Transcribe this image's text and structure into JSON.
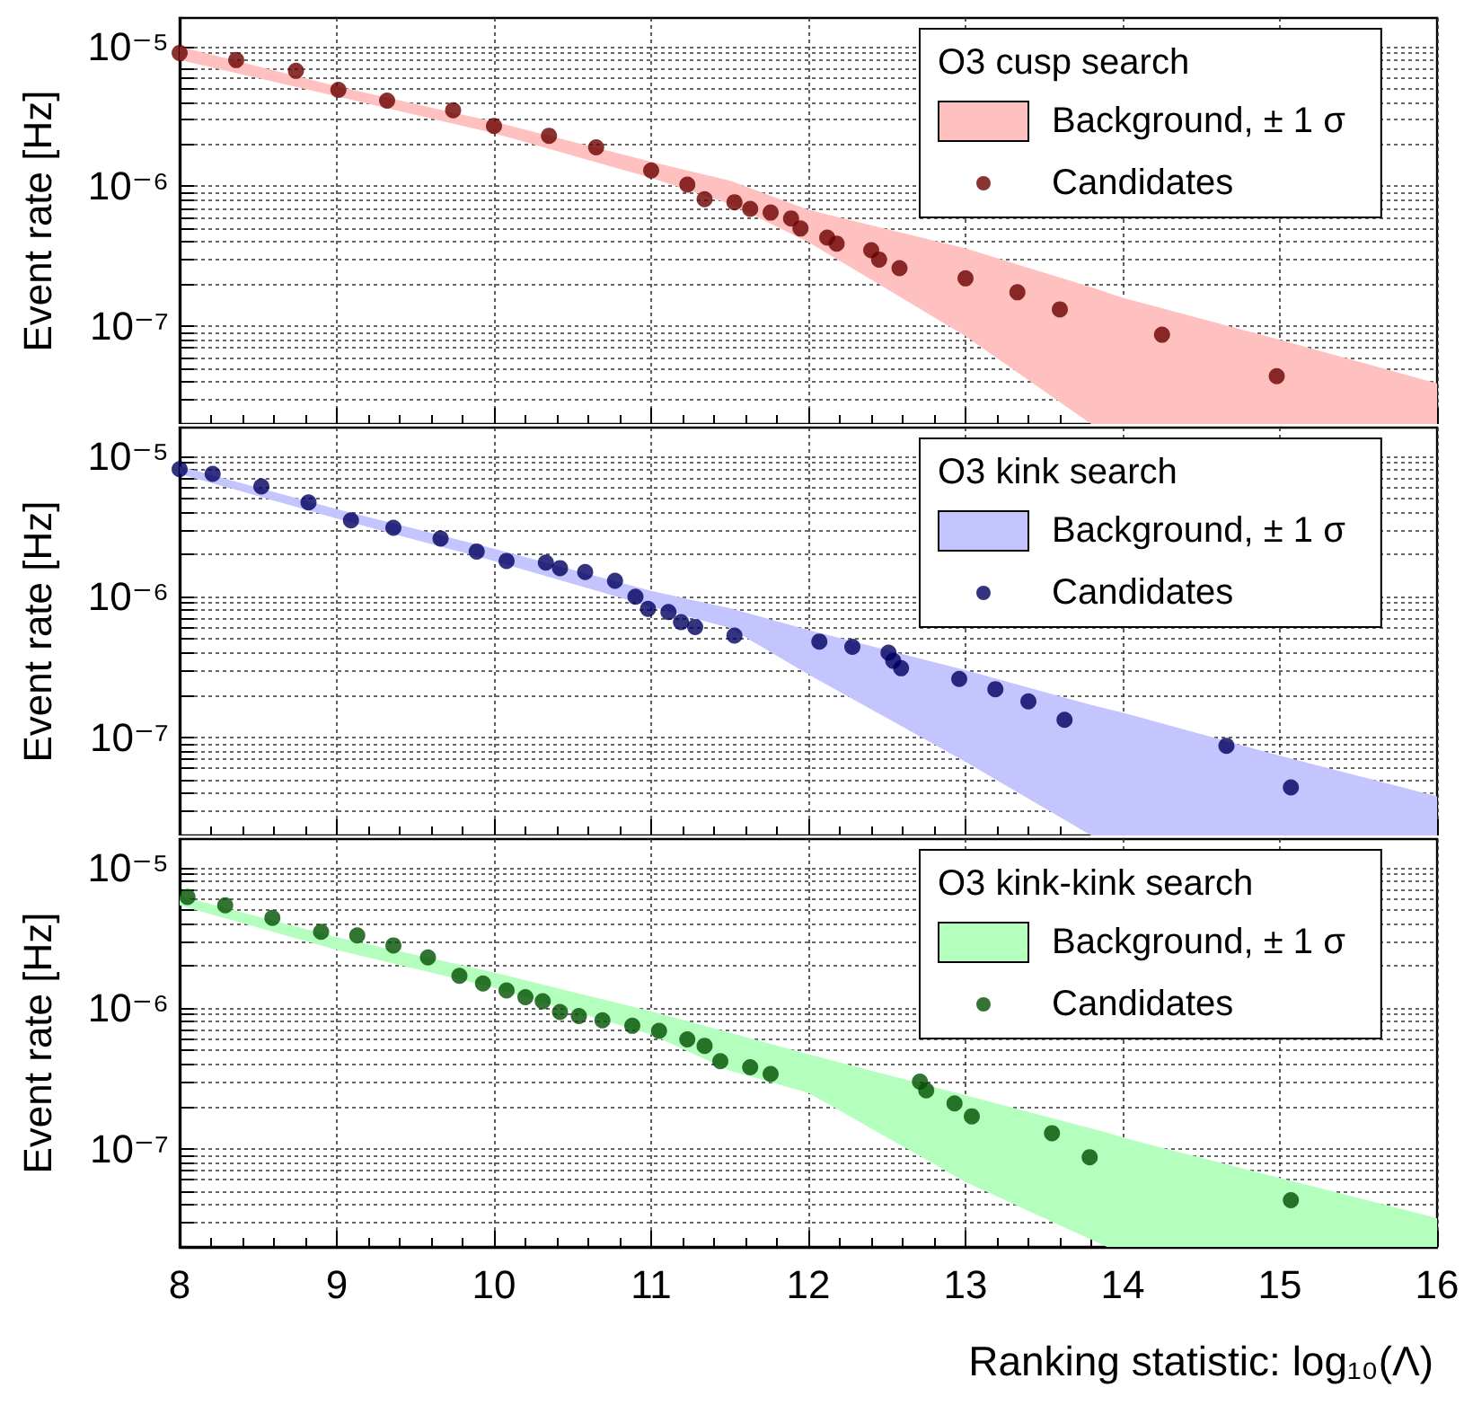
{
  "chart_data": [
    {
      "type": "scatter",
      "ylabel": "Event rate [Hz]",
      "legend_title": "O3 cusp search",
      "log": "y",
      "xlim": [
        8,
        16
      ],
      "xticks": [
        8,
        9,
        10,
        11,
        12,
        13,
        14,
        15,
        16
      ],
      "ylim": [
        2e-08,
        1.6e-05
      ],
      "yticks": [
        {
          "value": 1e-07,
          "label": "10⁻⁷"
        },
        {
          "value": 1e-06,
          "label": "10⁻⁶"
        },
        {
          "value": 1e-05,
          "label": "10⁻⁵"
        }
      ],
      "grid": true,
      "legend": "top right",
      "marker": "circle",
      "tick_labels": "y",
      "series": [
        {
          "name": "Background, ± 1 σ",
          "type": "area",
          "color": "#ffc0c0",
          "x": [
            8,
            9,
            10,
            11,
            11.5,
            12,
            13,
            13.8,
            14,
            15,
            16
          ],
          "values": [
            null,
            null,
            null,
            null,
            null,
            null,
            null,
            null,
            null,
            null,
            null
          ],
          "upper": [
            1e-05,
            5.2e-06,
            2.9e-06,
            1.5e-06,
            1.1e-06,
            6.8e-07,
            3.6e-07,
            1.9e-07,
            1.6e-07,
            8e-08,
            3.9e-08
          ],
          "lower": [
            8e-06,
            4.4e-06,
            2.4e-06,
            1.15e-06,
            7.5e-07,
            4e-07,
            8.5e-08,
            2e-08,
            2e-08,
            2e-08,
            2e-08
          ]
        },
        {
          "name": "Candidates",
          "type": "scatter",
          "color": "#6b0000",
          "x": [
            8.0,
            8.36,
            8.74,
            9.01,
            9.32,
            9.74,
            10.0,
            10.35,
            10.65,
            11.0,
            11.23,
            11.34,
            11.53,
            11.63,
            11.76,
            11.89,
            11.95,
            12.12,
            12.18,
            12.4,
            12.45,
            12.58,
            13.0,
            13.33,
            13.6,
            14.25,
            14.98
          ],
          "values": [
            9e-06,
            8e-06,
            6.7e-06,
            4.9e-06,
            4.1e-06,
            3.5e-06,
            2.7e-06,
            2.3e-06,
            1.9e-06,
            1.3e-06,
            1.03e-06,
            8.1e-07,
            7.7e-07,
            6.9e-07,
            6.5e-07,
            5.9e-07,
            5e-07,
            4.3e-07,
            3.9e-07,
            3.5e-07,
            3e-07,
            2.6e-07,
            2.2e-07,
            1.75e-07,
            1.32e-07,
            8.7e-08,
            4.4e-08
          ]
        }
      ]
    },
    {
      "type": "scatter",
      "ylabel": "Event rate [Hz]",
      "legend_title": "O3 kink search",
      "log": "y",
      "xlim": [
        8,
        16
      ],
      "xticks": [
        8,
        9,
        10,
        11,
        12,
        13,
        14,
        15,
        16
      ],
      "ylim": [
        2e-08,
        1.6e-05
      ],
      "yticks": [
        {
          "value": 1e-07,
          "label": "10⁻⁷"
        },
        {
          "value": 1e-06,
          "label": "10⁻⁶"
        },
        {
          "value": 1e-05,
          "label": "10⁻⁵"
        }
      ],
      "grid": true,
      "legend": "top right",
      "marker": "circle",
      "tick_labels": "y",
      "series": [
        {
          "name": "Background, ± 1 σ",
          "type": "area",
          "color": "#c4c4ff",
          "x": [
            8,
            9,
            10,
            11,
            11.5,
            12,
            13,
            13.8,
            14,
            15,
            16
          ],
          "values": [
            null,
            null,
            null,
            null,
            null,
            null,
            null,
            null,
            null,
            null,
            null
          ],
          "upper": [
            8.5e-06,
            4.2e-06,
            2.2e-06,
            1.1e-06,
            8.3e-07,
            5.8e-07,
            3e-07,
            1.7e-07,
            1.5e-07,
            7.4e-08,
            3.8e-08
          ],
          "lower": [
            7.5e-06,
            3.6e-06,
            1.8e-06,
            8.5e-07,
            6e-07,
            2.8e-07,
            6.7e-08,
            2e-08,
            2e-08,
            2e-08,
            2e-08
          ]
        },
        {
          "name": "Candidates",
          "type": "scatter",
          "color": "#000060",
          "x": [
            8.0,
            8.21,
            8.52,
            8.82,
            9.09,
            9.36,
            9.66,
            9.89,
            10.08,
            10.33,
            10.42,
            10.58,
            10.77,
            10.9,
            10.98,
            11.11,
            11.19,
            11.28,
            11.53,
            12.07,
            12.28,
            12.51,
            12.54,
            12.59,
            12.96,
            13.19,
            13.4,
            13.63,
            14.66,
            15.07
          ],
          "values": [
            8.1e-06,
            7.5e-06,
            6.1e-06,
            4.7e-06,
            3.5e-06,
            3.1e-06,
            2.6e-06,
            2.1e-06,
            1.8e-06,
            1.75e-06,
            1.6e-06,
            1.5e-06,
            1.3e-06,
            1e-06,
            8.2e-07,
            7.8e-07,
            6.6e-07,
            6.1e-07,
            5.3e-07,
            4.8e-07,
            4.4e-07,
            4e-07,
            3.5e-07,
            3.1e-07,
            2.6e-07,
            2.2e-07,
            1.8e-07,
            1.33e-07,
            8.7e-08,
            4.4e-08
          ]
        }
      ]
    },
    {
      "type": "scatter",
      "ylabel": "Event rate [Hz]",
      "xlabel": "Ranking statistic: log₁₀(Λ)",
      "legend_title": "O3 kink-kink search",
      "log": "y",
      "xlim": [
        8,
        16
      ],
      "xticks": [
        8,
        9,
        10,
        11,
        12,
        13,
        14,
        15,
        16
      ],
      "ylim": [
        2e-08,
        1.6e-05
      ],
      "yticks": [
        {
          "value": 1e-07,
          "label": "10⁻⁷"
        },
        {
          "value": 1e-06,
          "label": "10⁻⁶"
        },
        {
          "value": 1e-05,
          "label": "10⁻⁵"
        }
      ],
      "grid": true,
      "legend": "top right",
      "marker": "circle",
      "series": [
        {
          "name": "Background, ± 1 σ",
          "type": "area",
          "color": "#b4ffbe",
          "x": [
            8,
            9,
            10,
            11,
            11.5,
            12,
            13,
            13.9,
            14,
            15,
            16
          ],
          "values": [
            null,
            null,
            null,
            null,
            null,
            null,
            null,
            null,
            null,
            null,
            null
          ],
          "upper": [
            6.3e-06,
            3.2e-06,
            1.8e-06,
            9.5e-07,
            6.7e-07,
            4.7e-07,
            2.4e-07,
            1.3e-07,
            1.2e-07,
            6.2e-08,
            3.2e-08
          ],
          "lower": [
            5.4e-06,
            2.6e-06,
            1.4e-06,
            6.5e-07,
            3.6e-07,
            2.5e-07,
            5.8e-08,
            2e-08,
            2e-08,
            2e-08,
            2e-08
          ]
        },
        {
          "name": "Candidates",
          "type": "scatter",
          "color": "#005000",
          "x": [
            8.05,
            8.29,
            8.59,
            8.9,
            9.13,
            9.36,
            9.58,
            9.78,
            9.93,
            10.08,
            10.2,
            10.31,
            10.42,
            10.54,
            10.69,
            10.88,
            11.05,
            11.23,
            11.34,
            11.44,
            11.63,
            11.76,
            12.71,
            12.75,
            12.93,
            13.04,
            13.55,
            13.79,
            15.07
          ],
          "values": [
            6.2e-06,
            5.4e-06,
            4.4e-06,
            3.5e-06,
            3.3e-06,
            2.8e-06,
            2.3e-06,
            1.7e-06,
            1.5e-06,
            1.34e-06,
            1.2e-06,
            1.12e-06,
            9.4e-07,
            8.8e-07,
            8.2e-07,
            7.5e-07,
            6.9e-07,
            6e-07,
            5.4e-07,
            4.2e-07,
            3.8e-07,
            3.4e-07,
            3e-07,
            2.6e-07,
            2.1e-07,
            1.7e-07,
            1.29e-07,
            8.7e-08,
            4.3e-08
          ]
        }
      ]
    }
  ]
}
